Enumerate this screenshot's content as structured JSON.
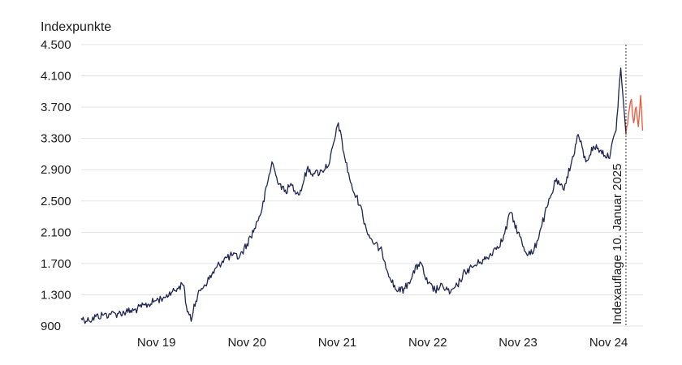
{
  "chart_data": {
    "type": "line",
    "ylabel": "Indexpunkte",
    "xlabel": "",
    "title": "",
    "ylim": [
      900,
      4500
    ],
    "yticks": [
      900,
      1300,
      1700,
      2100,
      2500,
      2900,
      3300,
      3700,
      4100,
      4500
    ],
    "ytick_labels": [
      "900",
      "1.300",
      "1.700",
      "2.100",
      "2.500",
      "2.900",
      "3.300",
      "3.700",
      "4.100",
      "4.500"
    ],
    "xlim": [
      "2019-01-01",
      "2025-03-20"
    ],
    "xticks": [
      "2019-11-01",
      "2020-11-01",
      "2021-11-01",
      "2022-11-01",
      "2023-11-01",
      "2024-11-01"
    ],
    "xtick_labels": [
      "Nov 19",
      "Nov 20",
      "Nov 21",
      "Nov 22",
      "Nov 23",
      "Nov 24"
    ],
    "grid": true,
    "annotation": {
      "text": "Indexauflage 10. Januar 2025",
      "date": "2025-01-10"
    },
    "series": [
      {
        "color": "#1f2450",
        "x": [
          "2019-01-01",
          "2019-02-01",
          "2019-03-01",
          "2019-04-01",
          "2019-05-01",
          "2019-06-01",
          "2019-07-01",
          "2019-08-01",
          "2019-09-01",
          "2019-10-01",
          "2019-11-01",
          "2019-12-01",
          "2020-01-01",
          "2020-02-01",
          "2020-02-20",
          "2020-03-01",
          "2020-03-20",
          "2020-04-01",
          "2020-05-01",
          "2020-06-01",
          "2020-07-01",
          "2020-08-01",
          "2020-09-01",
          "2020-10-01",
          "2020-11-01",
          "2020-12-01",
          "2021-01-01",
          "2021-02-10",
          "2021-03-01",
          "2021-04-01",
          "2021-05-01",
          "2021-06-01",
          "2021-07-01",
          "2021-08-01",
          "2021-09-01",
          "2021-10-01",
          "2021-11-05",
          "2021-12-01",
          "2022-01-01",
          "2022-02-01",
          "2022-03-01",
          "2022-04-01",
          "2022-05-01",
          "2022-06-01",
          "2022-07-01",
          "2022-08-01",
          "2022-09-01",
          "2022-10-01",
          "2022-11-01",
          "2022-12-01",
          "2023-01-01",
          "2023-02-01",
          "2023-03-01",
          "2023-04-01",
          "2023-05-01",
          "2023-06-01",
          "2023-07-01",
          "2023-08-01",
          "2023-09-01",
          "2023-10-01",
          "2023-11-01",
          "2023-12-01",
          "2024-01-01",
          "2024-02-01",
          "2024-03-01",
          "2024-04-01",
          "2024-05-01",
          "2024-06-01",
          "2024-07-01",
          "2024-08-01",
          "2024-09-01",
          "2024-10-01",
          "2024-11-01",
          "2024-12-01",
          "2024-12-20",
          "2025-01-10"
        ],
        "values": [
          1000,
          970,
          1020,
          1040,
          1050,
          1060,
          1080,
          1100,
          1140,
          1180,
          1230,
          1270,
          1330,
          1410,
          1420,
          1150,
          960,
          1180,
          1380,
          1500,
          1650,
          1760,
          1800,
          1780,
          1950,
          2150,
          2400,
          3000,
          2800,
          2620,
          2700,
          2580,
          2900,
          2850,
          2880,
          3000,
          3500,
          3050,
          2650,
          2450,
          2100,
          1950,
          1850,
          1520,
          1340,
          1380,
          1560,
          1720,
          1440,
          1360,
          1410,
          1330,
          1420,
          1600,
          1650,
          1720,
          1770,
          1900,
          2000,
          2350,
          2100,
          1850,
          1830,
          2150,
          2450,
          2750,
          2650,
          2950,
          3350,
          3000,
          3200,
          3150,
          3050,
          3400,
          4200,
          3350
        ]
      },
      {
        "color": "#e8583d",
        "x": [
          "2025-01-10",
          "2025-01-20",
          "2025-02-01",
          "2025-02-10",
          "2025-02-20",
          "2025-03-01",
          "2025-03-10",
          "2025-03-18"
        ],
        "values": [
          3350,
          3600,
          3800,
          3500,
          3700,
          3450,
          3850,
          3400
        ]
      }
    ]
  }
}
